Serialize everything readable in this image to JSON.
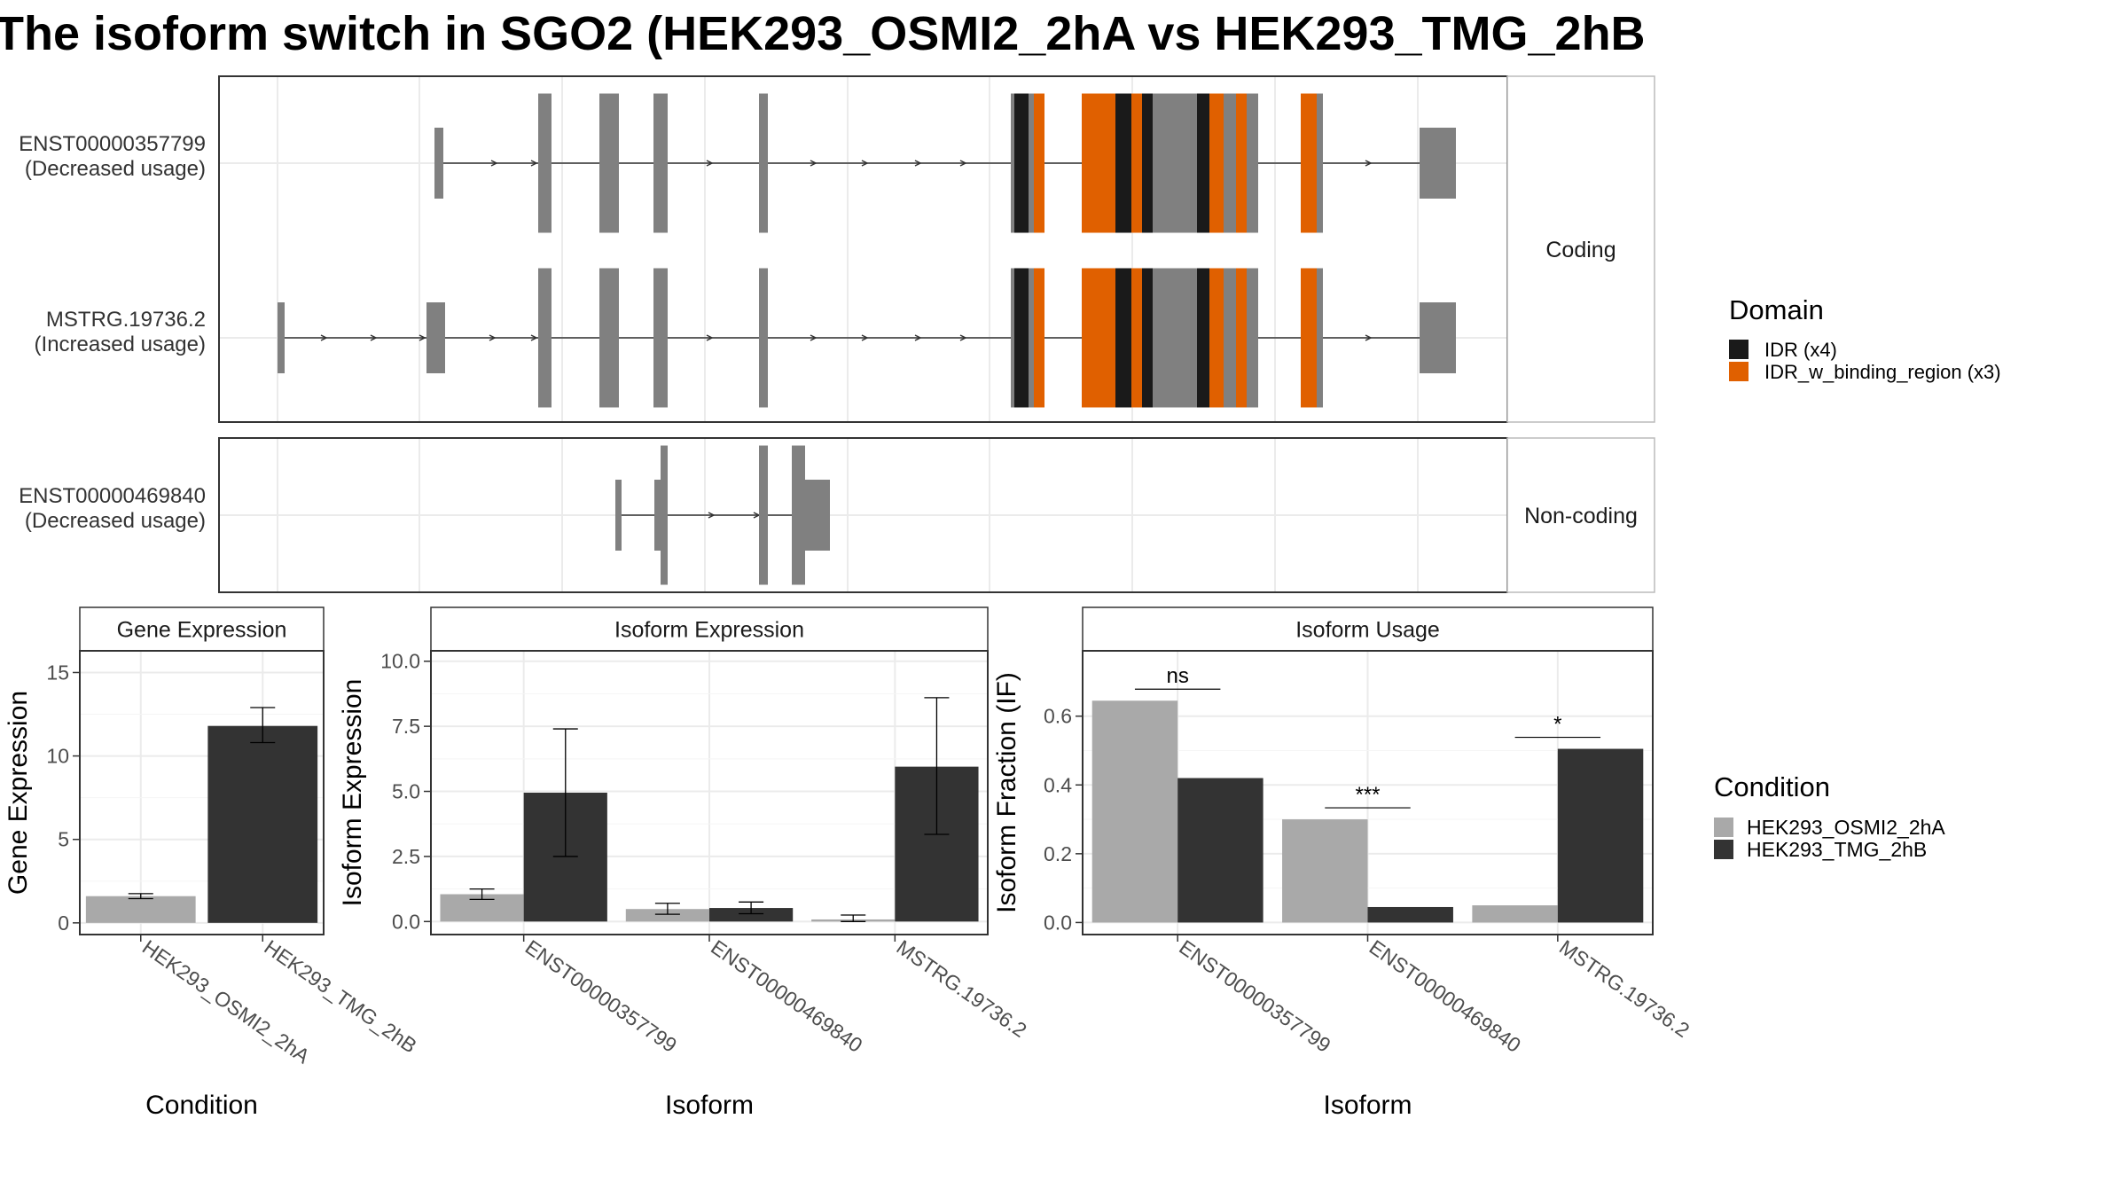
{
  "title": "The isoform switch in SGO2 (HEK293_OSMI2_2hA vs HEK293_TMG_2hB",
  "colors": {
    "idr": "#1a1a1a",
    "idr_binding": "#e06000",
    "exon": "#808080",
    "cond1": "#a9a9a9",
    "cond2": "#333333"
  },
  "chart_data": [
    {
      "type": "gene-structure",
      "facets": [
        "Coding",
        "Non-coding"
      ],
      "transcripts": [
        {
          "id": "ENST00000357799",
          "usage": "(Decreased usage)",
          "facet": "Coding"
        },
        {
          "id": "MSTRG.19736.2",
          "usage": "(Increased usage)",
          "facet": "Coding"
        },
        {
          "id": "ENST00000469840",
          "usage": "(Decreased usage)",
          "facet": "Non-coding"
        }
      ],
      "legend": {
        "title": "Domain",
        "items": [
          {
            "label": "IDR (x4)",
            "color": "#1a1a1a"
          },
          {
            "label": "IDR_w_binding_region (x3)",
            "color": "#e06000"
          }
        ]
      }
    },
    {
      "type": "bar",
      "title": "Gene Expression",
      "xlabel": "Condition",
      "ylabel": "Gene Expression",
      "categories": [
        "HEK293_OSMI2_2hA",
        "HEK293_TMG_2hB"
      ],
      "values": [
        1.6,
        11.8
      ],
      "errors": [
        [
          1.45,
          1.75
        ],
        [
          10.8,
          12.9
        ]
      ],
      "ylim": [
        -0.7,
        16.3
      ],
      "yticks": [
        "0",
        "5",
        "10",
        "15"
      ],
      "ytick_values": [
        0,
        5,
        10,
        15
      ]
    },
    {
      "type": "bar",
      "title": "Isoform Expression",
      "xlabel": "Isoform",
      "ylabel": "Isoform Expression",
      "categories": [
        "ENST00000357799",
        "ENST00000469840",
        "MSTRG.19736.2"
      ],
      "series": [
        {
          "name": "HEK293_OSMI2_2hA",
          "values": [
            1.05,
            0.48,
            0.08
          ]
        },
        {
          "name": "HEK293_TMG_2hB",
          "values": [
            4.95,
            0.52,
            5.95
          ]
        }
      ],
      "errors": [
        [
          [
            0.85,
            1.25
          ],
          [
            0.28,
            0.7
          ],
          [
            0.0,
            0.25
          ]
        ],
        [
          [
            2.5,
            7.4
          ],
          [
            0.3,
            0.75
          ],
          [
            3.35,
            8.6
          ]
        ]
      ],
      "ylim": [
        -0.5,
        10.4
      ],
      "yticks": [
        "0.0",
        "2.5",
        "5.0",
        "7.5",
        "10.0"
      ],
      "ytick_values": [
        0,
        2.5,
        5,
        7.5,
        10
      ]
    },
    {
      "type": "bar",
      "title": "Isoform Usage",
      "xlabel": "Isoform",
      "ylabel": "Isoform Fraction (IF)",
      "categories": [
        "ENST00000357799",
        "ENST00000469840",
        "MSTRG.19736.2"
      ],
      "series": [
        {
          "name": "HEK293_OSMI2_2hA",
          "values": [
            0.645,
            0.3,
            0.05
          ]
        },
        {
          "name": "HEK293_TMG_2hB",
          "values": [
            0.42,
            0.045,
            0.505
          ]
        }
      ],
      "significance": [
        "ns",
        "***",
        "*"
      ],
      "ylim": [
        -0.035,
        0.79
      ],
      "yticks": [
        "0.0",
        "0.2",
        "0.4",
        "0.6"
      ],
      "ytick_values": [
        0,
        0.2,
        0.4,
        0.6
      ]
    }
  ],
  "condition_legend": {
    "title": "Condition",
    "items": [
      {
        "label": "HEK293_OSMI2_2hA",
        "color": "#a9a9a9"
      },
      {
        "label": "HEK293_TMG_2hB",
        "color": "#333333"
      }
    ]
  }
}
